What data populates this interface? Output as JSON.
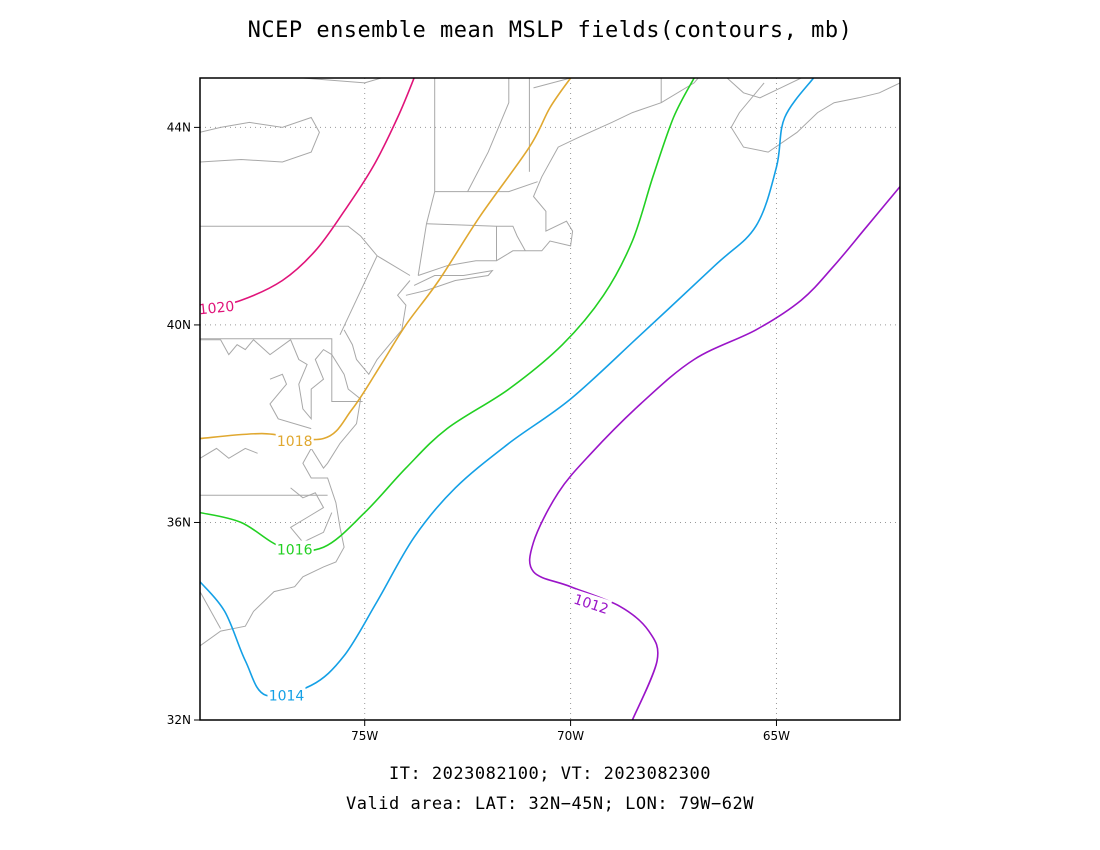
{
  "title": "NCEP ensemble mean MSLP fields(contours, mb)",
  "footer": {
    "line1": "IT: 2023082100; VT: 2023082300",
    "line2": "Valid area: LAT: 32N−45N; LON: 79W−62W"
  },
  "map": {
    "lon_range": [
      -79,
      -62
    ],
    "lat_range": [
      32,
      45
    ],
    "grid": "dotted",
    "lon_ticks": [
      {
        "lon": -75,
        "label": "75W"
      },
      {
        "lon": -70,
        "label": "70W"
      },
      {
        "lon": -65,
        "label": "65W"
      }
    ],
    "lat_ticks": [
      {
        "lat": 44,
        "label": "44N"
      },
      {
        "lat": 40,
        "label": "40N"
      },
      {
        "lat": 36,
        "label": "36N"
      },
      {
        "lat": 32,
        "label": "32N"
      }
    ],
    "contours": [
      {
        "level": "1020",
        "color": "#e0147a",
        "points": [
          [
            -79,
            40.3
          ],
          [
            -78,
            40.5
          ],
          [
            -77,
            40.9
          ],
          [
            -76.2,
            41.5
          ],
          [
            -75.5,
            42.3
          ],
          [
            -74.8,
            43.2
          ],
          [
            -74.2,
            44.2
          ],
          [
            -73.8,
            45
          ]
        ]
      },
      {
        "level": "1018",
        "color": "#e0a830",
        "points": [
          [
            -79,
            37.7
          ],
          [
            -77.5,
            37.8
          ],
          [
            -76,
            37.7
          ],
          [
            -75.3,
            38.3
          ],
          [
            -74.6,
            39.2
          ],
          [
            -74,
            40
          ],
          [
            -73.2,
            40.9
          ],
          [
            -72.2,
            42.2
          ],
          [
            -71,
            43.6
          ],
          [
            -70.5,
            44.4
          ],
          [
            -70,
            45
          ]
        ]
      },
      {
        "level": "1016",
        "color": "#22d022",
        "points": [
          [
            -79,
            36.2
          ],
          [
            -78,
            36
          ],
          [
            -77,
            35.5
          ],
          [
            -76,
            35.5
          ],
          [
            -75,
            36.2
          ],
          [
            -74,
            37.1
          ],
          [
            -73,
            37.9
          ],
          [
            -71.5,
            38.7
          ],
          [
            -70.2,
            39.6
          ],
          [
            -69.2,
            40.6
          ],
          [
            -68.5,
            41.7
          ],
          [
            -68,
            43
          ],
          [
            -67.5,
            44.2
          ],
          [
            -67,
            45
          ]
        ]
      },
      {
        "level": "1014",
        "color": "#14a0e6",
        "points": [
          [
            -79,
            34.8
          ],
          [
            -78.4,
            34.2
          ],
          [
            -77.9,
            33.2
          ],
          [
            -77.4,
            32.5
          ],
          [
            -76.3,
            32.7
          ],
          [
            -75.5,
            33.3
          ],
          [
            -74.7,
            34.4
          ],
          [
            -73.8,
            35.7
          ],
          [
            -72.8,
            36.7
          ],
          [
            -71.5,
            37.6
          ],
          [
            -70,
            38.5
          ],
          [
            -68.3,
            39.8
          ],
          [
            -66.5,
            41.2
          ],
          [
            -65.5,
            42
          ],
          [
            -65,
            43.2
          ],
          [
            -64.8,
            44.2
          ],
          [
            -64.1,
            45
          ]
        ]
      },
      {
        "level": "1012",
        "color": "#9a14c8",
        "points": [
          [
            -68.5,
            32
          ],
          [
            -67.9,
            33.2
          ],
          [
            -68.1,
            33.8
          ],
          [
            -68.8,
            34.3
          ],
          [
            -70,
            34.7
          ],
          [
            -70.9,
            35
          ],
          [
            -70.9,
            35.6
          ],
          [
            -70.3,
            36.6
          ],
          [
            -69.5,
            37.4
          ],
          [
            -68.3,
            38.4
          ],
          [
            -67,
            39.3
          ],
          [
            -65.5,
            39.9
          ],
          [
            -64.4,
            40.5
          ],
          [
            -63.6,
            41.2
          ],
          [
            -62.8,
            42
          ],
          [
            -62,
            42.8
          ]
        ]
      }
    ],
    "contour_labels": [
      {
        "text": "1020",
        "lon": -78.6,
        "lat": 40.35,
        "color": "#e0147a",
        "angle": -6
      },
      {
        "text": "1018",
        "lon": -76.7,
        "lat": 37.65,
        "color": "#e0a830",
        "angle": 0
      },
      {
        "text": "1016",
        "lon": -76.7,
        "lat": 35.45,
        "color": "#22d022",
        "angle": 0
      },
      {
        "text": "1014",
        "lon": -76.9,
        "lat": 32.5,
        "color": "#14a0e6",
        "angle": 0
      },
      {
        "text": "1012",
        "lon": -69.5,
        "lat": 34.35,
        "color": "#9a14c8",
        "angle": 18
      }
    ],
    "coastlines": [
      [
        [
          -79,
          37.3
        ],
        [
          -78.6,
          37.5
        ],
        [
          -78.3,
          37.3
        ],
        [
          -77.9,
          37.5
        ],
        [
          -77.6,
          37.4
        ]
      ],
      [
        [
          -79,
          39.7
        ],
        [
          -78.5,
          39.7
        ],
        [
          -78.3,
          39.4
        ],
        [
          -78.1,
          39.6
        ],
        [
          -77.9,
          39.5
        ],
        [
          -77.7,
          39.7
        ],
        [
          -77.3,
          39.4
        ],
        [
          -76.8,
          39.7
        ],
        [
          -76.6,
          39.3
        ],
        [
          -76.4,
          39.2
        ],
        [
          -76.6,
          38.8
        ],
        [
          -76.5,
          38.3
        ],
        [
          -76.3,
          38.1
        ],
        [
          -76.3,
          38.7
        ],
        [
          -76,
          38.9
        ],
        [
          -76.2,
          39.3
        ],
        [
          -76,
          39.5
        ],
        [
          -75.8,
          39.4
        ],
        [
          -75.5,
          39.0
        ],
        [
          -75.4,
          38.7
        ],
        [
          -75.1,
          38.5
        ],
        [
          -75.2,
          38.0
        ],
        [
          -75.6,
          37.6
        ],
        [
          -75.9,
          37.2
        ],
        [
          -76.0,
          37.1
        ],
        [
          -76.3,
          37.5
        ],
        [
          -76.5,
          37.2
        ],
        [
          -76.3,
          36.9
        ],
        [
          -75.9,
          36.9
        ],
        [
          -75.7,
          36.4
        ],
        [
          -75.6,
          35.9
        ],
        [
          -75.5,
          35.5
        ],
        [
          -75.7,
          35.2
        ],
        [
          -76.0,
          35.1
        ],
        [
          -76.5,
          34.9
        ],
        [
          -76.7,
          34.7
        ],
        [
          -77.2,
          34.6
        ],
        [
          -77.7,
          34.2
        ],
        [
          -77.9,
          33.9
        ],
        [
          -78.5,
          33.8
        ],
        [
          -79,
          33.5
        ]
      ],
      [
        [
          -76.8,
          36.7
        ],
        [
          -76.5,
          36.5
        ],
        [
          -76.2,
          36.6
        ],
        [
          -76.0,
          36.3
        ],
        [
          -76.4,
          36.1
        ],
        [
          -76.8,
          35.9
        ],
        [
          -76.5,
          35.6
        ],
        [
          -76.0,
          35.8
        ],
        [
          -75.8,
          36.2
        ]
      ],
      [
        [
          -75.5,
          39.9
        ],
        [
          -75.3,
          39.6
        ],
        [
          -75.2,
          39.3
        ],
        [
          -74.9,
          39.0
        ],
        [
          -74.7,
          39.3
        ],
        [
          -74.4,
          39.6
        ],
        [
          -74.1,
          39.9
        ],
        [
          -74.0,
          40.4
        ],
        [
          -74.2,
          40.6
        ],
        [
          -73.9,
          40.9
        ]
      ],
      [
        [
          -74.0,
          40.6
        ],
        [
          -73.5,
          40.7
        ],
        [
          -72.8,
          40.9
        ],
        [
          -72.0,
          41.0
        ],
        [
          -71.9,
          41.1
        ],
        [
          -72.6,
          41.0
        ],
        [
          -73.3,
          41.0
        ],
        [
          -73.8,
          40.8
        ]
      ],
      [
        [
          -73.7,
          41.0
        ],
        [
          -73.0,
          41.2
        ],
        [
          -72.3,
          41.3
        ],
        [
          -71.8,
          41.3
        ],
        [
          -71.4,
          41.5
        ],
        [
          -71.1,
          41.5
        ],
        [
          -70.7,
          41.5
        ],
        [
          -70.5,
          41.7
        ],
        [
          -70.0,
          41.6
        ],
        [
          -69.95,
          41.9
        ],
        [
          -70.1,
          42.1
        ],
        [
          -70.6,
          41.9
        ],
        [
          -70.6,
          42.3
        ],
        [
          -70.9,
          42.6
        ],
        [
          -70.7,
          43.0
        ],
        [
          -70.3,
          43.6
        ],
        [
          -69.8,
          43.8
        ],
        [
          -69.0,
          44.1
        ],
        [
          -68.5,
          44.3
        ],
        [
          -67.8,
          44.5
        ],
        [
          -67.0,
          44.9
        ],
        [
          -66.9,
          45
        ]
      ],
      [
        [
          -66.2,
          45
        ],
        [
          -65.8,
          44.7
        ],
        [
          -65.4,
          44.6
        ],
        [
          -64.9,
          44.8
        ],
        [
          -64.4,
          45
        ]
      ],
      [
        [
          -62,
          44.9
        ],
        [
          -62.5,
          44.7
        ],
        [
          -63.0,
          44.6
        ],
        [
          -63.6,
          44.5
        ],
        [
          -64.0,
          44.3
        ],
        [
          -64.5,
          43.9
        ],
        [
          -65.2,
          43.5
        ],
        [
          -65.8,
          43.6
        ],
        [
          -66.1,
          44.0
        ],
        [
          -65.9,
          44.3
        ],
        [
          -65.3,
          44.9
        ]
      ],
      [
        [
          -79,
          43.3
        ],
        [
          -78,
          43.35
        ],
        [
          -77,
          43.3
        ],
        [
          -76.3,
          43.5
        ],
        [
          -76.1,
          43.9
        ],
        [
          -76.3,
          44.2
        ],
        [
          -77.0,
          44.0
        ],
        [
          -77.8,
          44.1
        ],
        [
          -78.5,
          44.0
        ],
        [
          -79,
          43.9
        ]
      ]
    ],
    "borders": [
      [
        [
          -79,
          42.0
        ],
        [
          -75.4,
          42.0
        ],
        [
          -75.1,
          41.8
        ],
        [
          -74.7,
          41.4
        ],
        [
          -73.9,
          41.0
        ]
      ],
      [
        [
          -75.6,
          39.8
        ],
        [
          -74.7,
          41.4
        ]
      ],
      [
        [
          -79,
          39.72
        ],
        [
          -75.8,
          39.72
        ],
        [
          -75.8,
          38.45
        ],
        [
          -75.05,
          38.45
        ]
      ],
      [
        [
          -77.3,
          38.9
        ],
        [
          -77.0,
          39.0
        ],
        [
          -76.9,
          38.8
        ],
        [
          -77.0,
          38.7
        ],
        [
          -77.3,
          38.4
        ],
        [
          -77.1,
          38.1
        ],
        [
          -76.3,
          37.9
        ]
      ],
      [
        [
          -79,
          36.55
        ],
        [
          -75.9,
          36.55
        ]
      ],
      [
        [
          -79,
          34.6
        ],
        [
          -78.5,
          33.85
        ]
      ],
      [
        [
          -73.7,
          41.0
        ],
        [
          -73.5,
          42.05
        ],
        [
          -73.3,
          42.7
        ],
        [
          -73.3,
          45
        ]
      ],
      [
        [
          -73.5,
          42.05
        ],
        [
          -71.8,
          42.0
        ],
        [
          -71.4,
          42.0
        ],
        [
          -71.3,
          41.8
        ],
        [
          -71.1,
          41.5
        ]
      ],
      [
        [
          -71.8,
          42.0
        ],
        [
          -71.8,
          41.3
        ]
      ],
      [
        [
          -73.3,
          42.7
        ],
        [
          -71.5,
          42.7
        ],
        [
          -70.8,
          42.9
        ]
      ],
      [
        [
          -72.5,
          42.7
        ],
        [
          -72.0,
          43.5
        ],
        [
          -71.5,
          44.5
        ],
        [
          -71.5,
          45
        ]
      ],
      [
        [
          -71.0,
          43.1
        ],
        [
          -71.0,
          45
        ]
      ],
      [
        [
          -70.9,
          44.8
        ],
        [
          -70.0,
          45
        ]
      ],
      [
        [
          -67.8,
          44.5
        ],
        [
          -67.8,
          45
        ]
      ],
      [
        [
          -79,
          43.9
        ],
        [
          -79,
          45
        ]
      ],
      [
        [
          -76.5,
          45
        ],
        [
          -75.0,
          44.9
        ],
        [
          -74.6,
          45.0
        ]
      ]
    ]
  }
}
